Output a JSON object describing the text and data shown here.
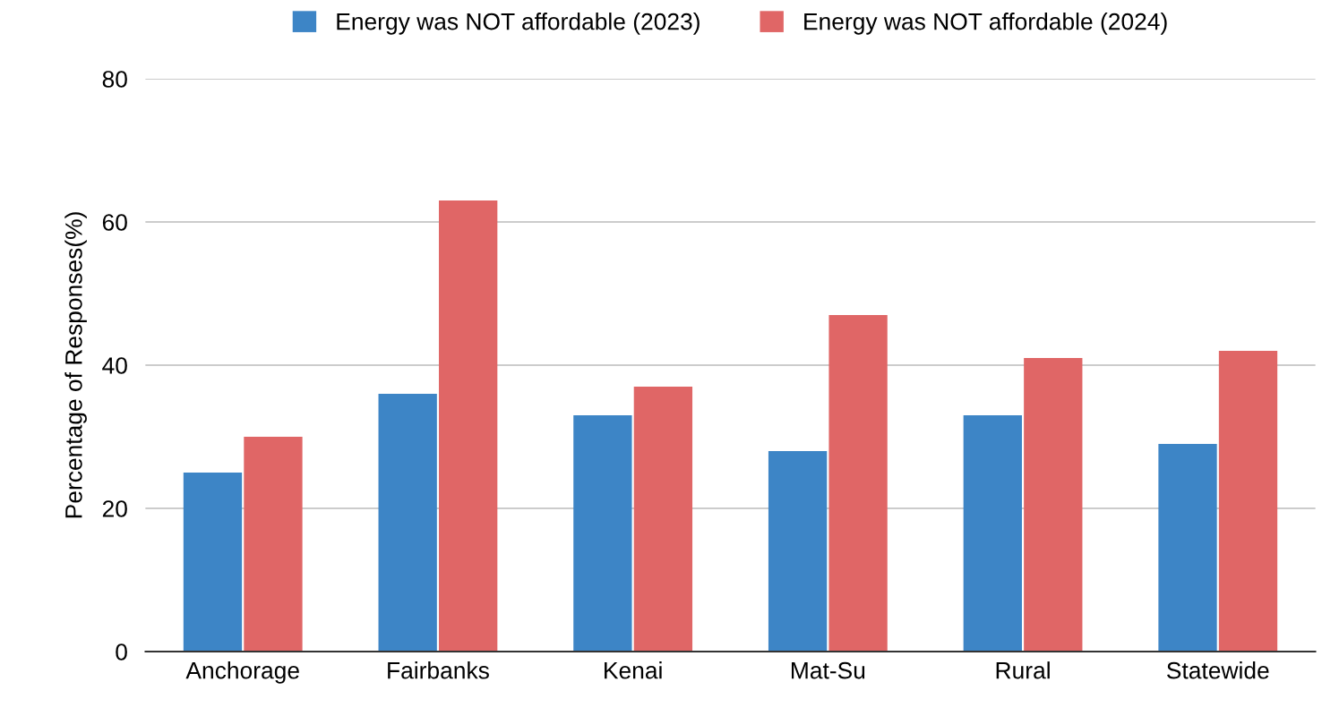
{
  "chart_data": {
    "type": "bar",
    "ylabel": "Percentage of Responses(%)",
    "categories": [
      "Anchorage",
      "Fairbanks",
      "Kenai",
      "Mat-Su",
      "Rural",
      "Statewide"
    ],
    "series": [
      {
        "name": "Energy was NOT affordable (2023)",
        "color": "#3d85c6",
        "values": [
          25,
          36,
          33,
          28,
          33,
          29
        ]
      },
      {
        "name": "Energy was NOT affordable (2024)",
        "color": "#e06666",
        "values": [
          30,
          63,
          37,
          47,
          41,
          42
        ]
      }
    ],
    "ylim": [
      0,
      80
    ],
    "yticks": [
      0,
      20,
      40,
      60,
      80
    ],
    "grid": "y",
    "legend": "top"
  }
}
